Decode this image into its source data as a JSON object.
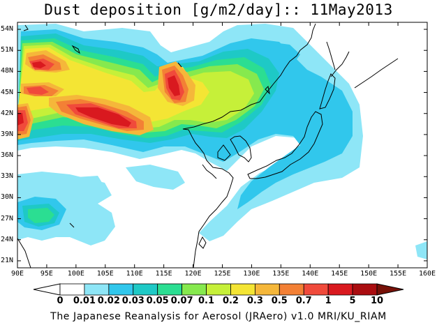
{
  "title": "Dust deposition [g/m2/day]:: 11May2013",
  "footer": "The Japanese Reanalysis for Aerosol (JRAero) v1.0 MRI/KU_RIAM",
  "map": {
    "lon_range": [
      90,
      160
    ],
    "lat_range": [
      20,
      55
    ],
    "lon_ticks": [
      "90E",
      "95E",
      "100E",
      "105E",
      "110E",
      "115E",
      "120E",
      "125E",
      "130E",
      "135E",
      "140E",
      "145E",
      "150E",
      "155E",
      "160E"
    ],
    "lat_ticks": [
      "21N",
      "24N",
      "27N",
      "30N",
      "33N",
      "36N",
      "39N",
      "42N",
      "45N",
      "48N",
      "51N",
      "54N"
    ],
    "lon_values": [
      90,
      95,
      100,
      105,
      110,
      115,
      120,
      125,
      130,
      135,
      140,
      145,
      150,
      155,
      160
    ],
    "lat_values": [
      21,
      24,
      27,
      30,
      33,
      36,
      39,
      42,
      45,
      48,
      51,
      54
    ]
  },
  "colorbar": {
    "labels": [
      "0",
      "0.01",
      "0.02",
      "0.03",
      "0.05",
      "0.07",
      "0.1",
      "0.2",
      "0.3",
      "0.5",
      "0.7",
      "1",
      "5",
      "10"
    ],
    "colors": [
      "#ffffff",
      "#8ee6f7",
      "#31c7ec",
      "#1ec9c6",
      "#2bde92",
      "#86e94e",
      "#c6f039",
      "#f4e534",
      "#f5b73a",
      "#f38035",
      "#f04a3b",
      "#d9191f",
      "#aa0d10",
      "#771108"
    ]
  }
}
